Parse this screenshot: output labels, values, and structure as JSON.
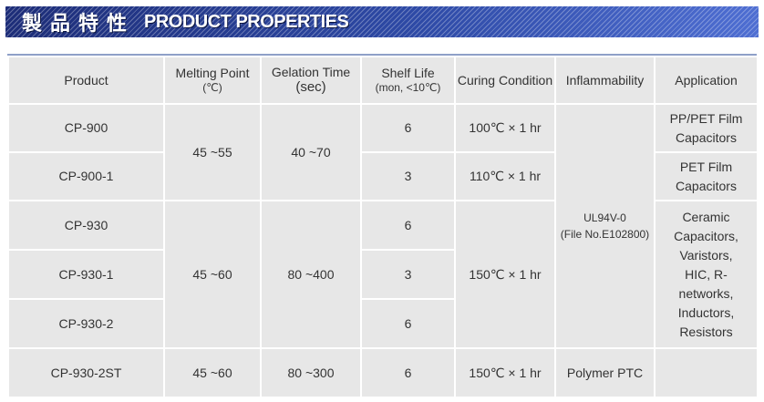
{
  "banner": {
    "title_cn": "製品特性",
    "title_en": "PRODUCT PROPERTIES"
  },
  "table": {
    "headers": {
      "product": "Product",
      "melting_point": "Melting Point",
      "melting_point_unit": "(℃)",
      "gelation_time": "Gelation Time",
      "gelation_time_unit": "(sec)",
      "shelf_life": "Shelf Life",
      "shelf_life_unit": "(mon,  <10℃)",
      "curing_condition": "Curing Condition",
      "inflammability": "Inflammability",
      "application": "Application"
    },
    "products": [
      "CP-900",
      "CP-900-1",
      "CP-930",
      "CP-930-1",
      "CP-930-2",
      "CP-930-2ST"
    ],
    "melting_points": [
      "45 ~55",
      "45 ~60",
      "45 ~60"
    ],
    "gelation_times": [
      "40 ~70",
      "80 ~400",
      "80 ~300"
    ],
    "shelf_lives": [
      "6",
      "3",
      "6",
      "3",
      "6",
      "6"
    ],
    "curing_conditions": [
      "100℃ × 1 hr",
      "110℃ × 1 hr",
      "150℃ × 1 hr",
      "150℃ × 1 hr"
    ],
    "inflammability": {
      "rating": "UL94V-0",
      "file": "(File No.E102800)"
    },
    "applications": {
      "cp900": [
        "PP/PET Film",
        "Capacitors"
      ],
      "cp900_1": [
        "PET Film",
        "Capacitors"
      ],
      "cp930_group": [
        "Ceramic",
        "Capacitors,",
        "Varistors,",
        "HIC, R-",
        "networks,",
        "Inductors,",
        "Resistors"
      ],
      "cp930_2st": "Polymer PTC"
    }
  },
  "colors": {
    "banner": "#273a86",
    "table_bg": "#e7e7e7",
    "grid": "#ffffff",
    "text": "#333333"
  }
}
